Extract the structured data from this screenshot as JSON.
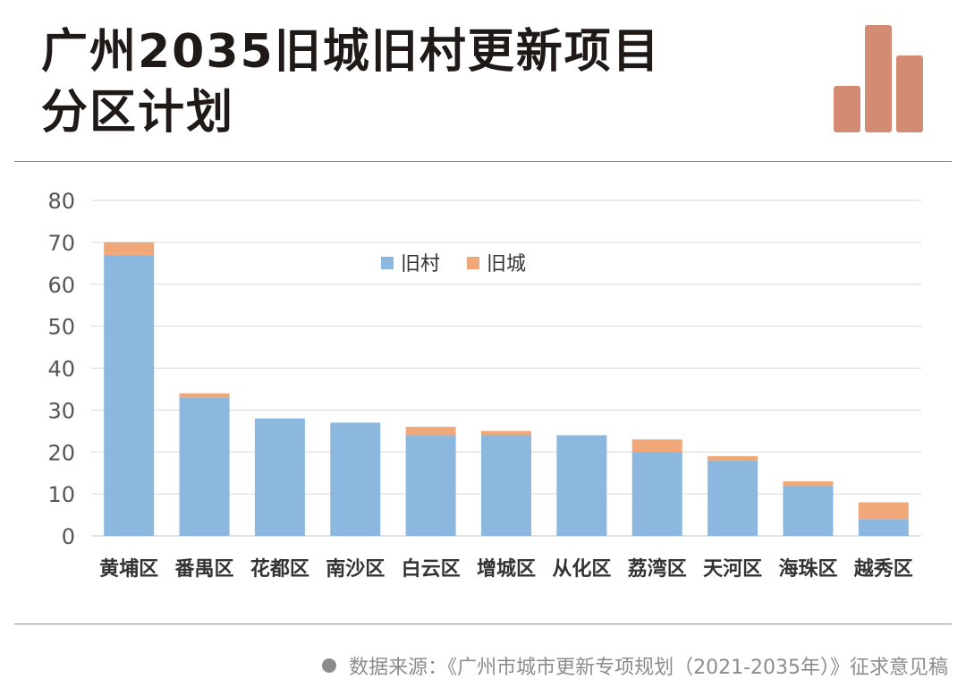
{
  "header": {
    "title_line1": "广州2035旧城旧村更新项目",
    "title_line2": "分区计划",
    "logo_icon": "bar-chart-logo-icon"
  },
  "colors": {
    "village": "#8cb8e0",
    "city": "#f0a878",
    "logo": "#d38b73",
    "axis_text": "#555555",
    "grid": "#d9d9d9"
  },
  "chart_data": {
    "type": "bar",
    "stacked": true,
    "categories": [
      "黄埔区",
      "番禺区",
      "花都区",
      "南沙区",
      "白云区",
      "增城区",
      "从化区",
      "荔湾区",
      "天河区",
      "海珠区",
      "越秀区"
    ],
    "series": [
      {
        "name": "旧村",
        "values": [
          67,
          33,
          28,
          27,
          24,
          24,
          24,
          20,
          18,
          12,
          4
        ]
      },
      {
        "name": "旧城",
        "values": [
          3,
          1,
          0,
          0,
          2,
          1,
          0,
          3,
          1,
          1,
          4
        ]
      }
    ],
    "ylim": [
      0,
      80
    ],
    "yticks": [
      0,
      10,
      20,
      30,
      40,
      50,
      60,
      70,
      80
    ],
    "grid": true,
    "legend_position": "top-center"
  },
  "footer": {
    "source": "数据来源：《广州市城市更新专项规划（2021-2035年）》征求意见稿"
  }
}
